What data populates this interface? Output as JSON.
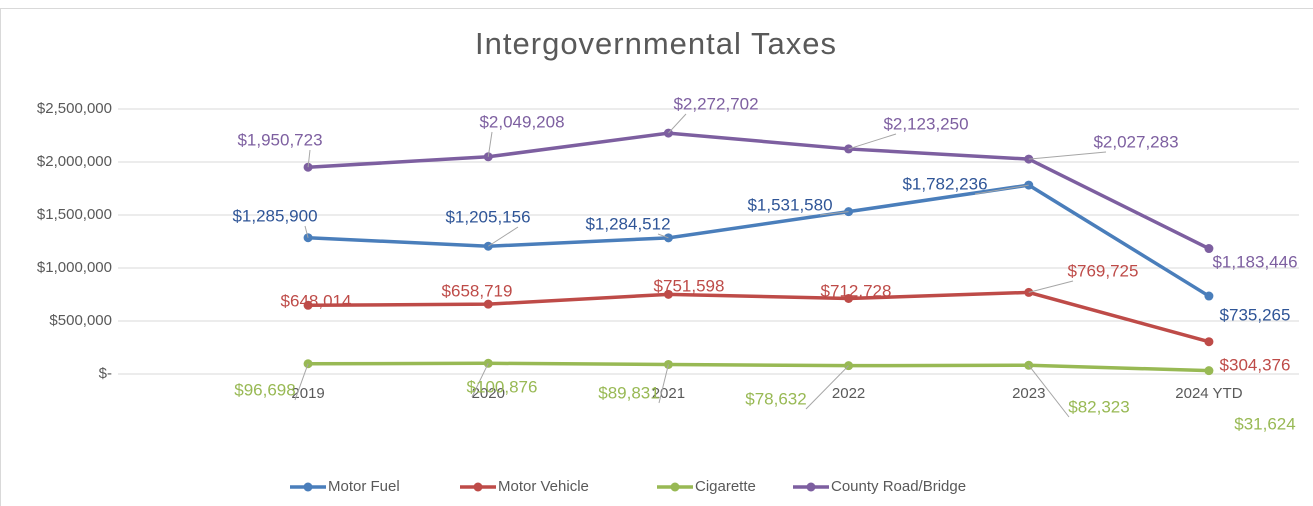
{
  "chart_data": {
    "type": "line",
    "title": "Intergovernmental Taxes",
    "categories": [
      "2019",
      "2020",
      "2021",
      "2022",
      "2023",
      "2024 YTD"
    ],
    "ylim": [
      0,
      2500000
    ],
    "yticks": [
      {
        "value": 0,
        "label": "$-"
      },
      {
        "value": 500000,
        "label": "$500,000"
      },
      {
        "value": 1000000,
        "label": "$1,000,000"
      },
      {
        "value": 1500000,
        "label": "$1,500,000"
      },
      {
        "value": 2000000,
        "label": "$2,000,000"
      },
      {
        "value": 2500000,
        "label": "$2,500,000"
      }
    ],
    "grid": true,
    "legend": "bottom",
    "series": [
      {
        "name": "Motor Fuel",
        "color": "#4a7ebb",
        "values": [
          1285900,
          1205156,
          1284512,
          1531580,
          1782236,
          735265
        ],
        "value_labels": [
          "$1,285,900",
          "$1,205,156",
          "$1,284,512",
          "$1,531,580",
          "$1,782,236",
          "$735,265"
        ]
      },
      {
        "name": "Motor Vehicle",
        "color": "#be4b48",
        "values": [
          648014,
          658719,
          751598,
          712728,
          769725,
          304376
        ],
        "value_labels": [
          "$648,014",
          "$658,719",
          "$751,598",
          "$712,728",
          "$769,725",
          "$304,376"
        ]
      },
      {
        "name": "Cigarette",
        "color": "#98b954",
        "values": [
          96698,
          100876,
          89831,
          78632,
          82323,
          31624
        ],
        "value_labels": [
          "$96,698",
          "$100,876",
          "$89,831",
          "$78,632",
          "$82,323",
          "$31,624"
        ]
      },
      {
        "name": "County Road/Bridge",
        "color": "#7d5fa0",
        "values": [
          1950723,
          2049208,
          2272702,
          2123250,
          2027283,
          1183446
        ],
        "value_labels": [
          "$1,950,723",
          "$2,049,208",
          "$2,272,702",
          "$2,123,250",
          "$2,027,283",
          "$1,183,446"
        ]
      }
    ]
  }
}
